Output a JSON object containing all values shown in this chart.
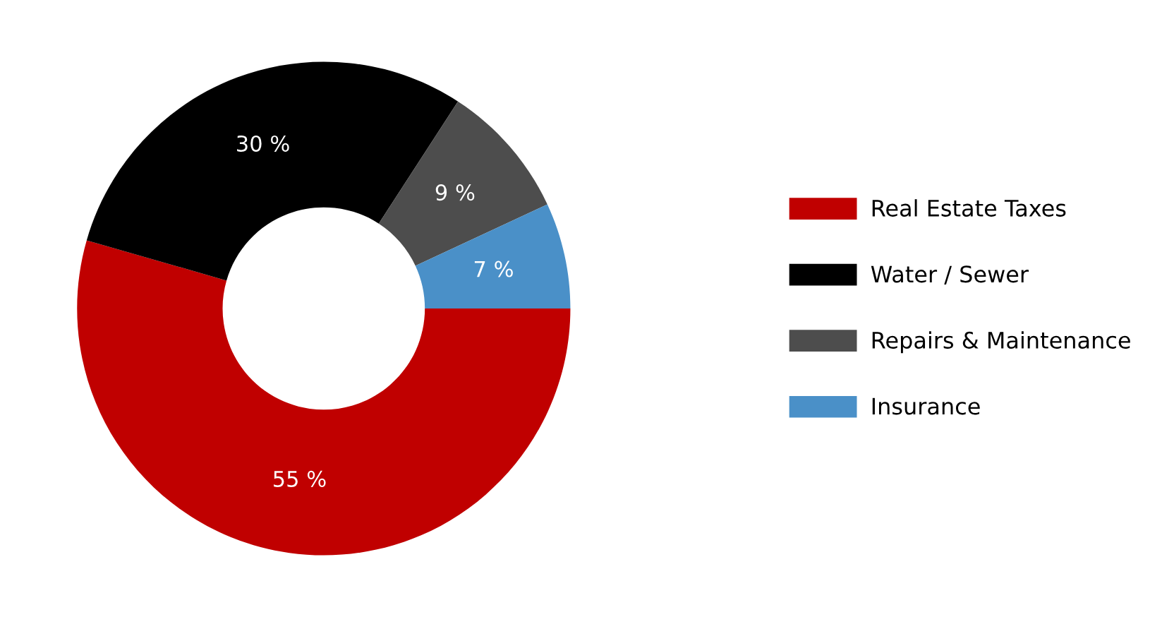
{
  "chart_data": {
    "type": "donut",
    "categories": [
      "Real Estate Taxes",
      "Water / Sewer",
      "Repairs & Maintenance",
      "Insurance"
    ],
    "values": [
      55,
      30,
      9,
      7
    ],
    "colors": [
      "#c00000",
      "#000000",
      "#4d4d4d",
      "#4a90c8"
    ],
    "value_labels": [
      "55 %",
      "30 %",
      "9 %",
      "7 %"
    ],
    "legend": "right"
  }
}
